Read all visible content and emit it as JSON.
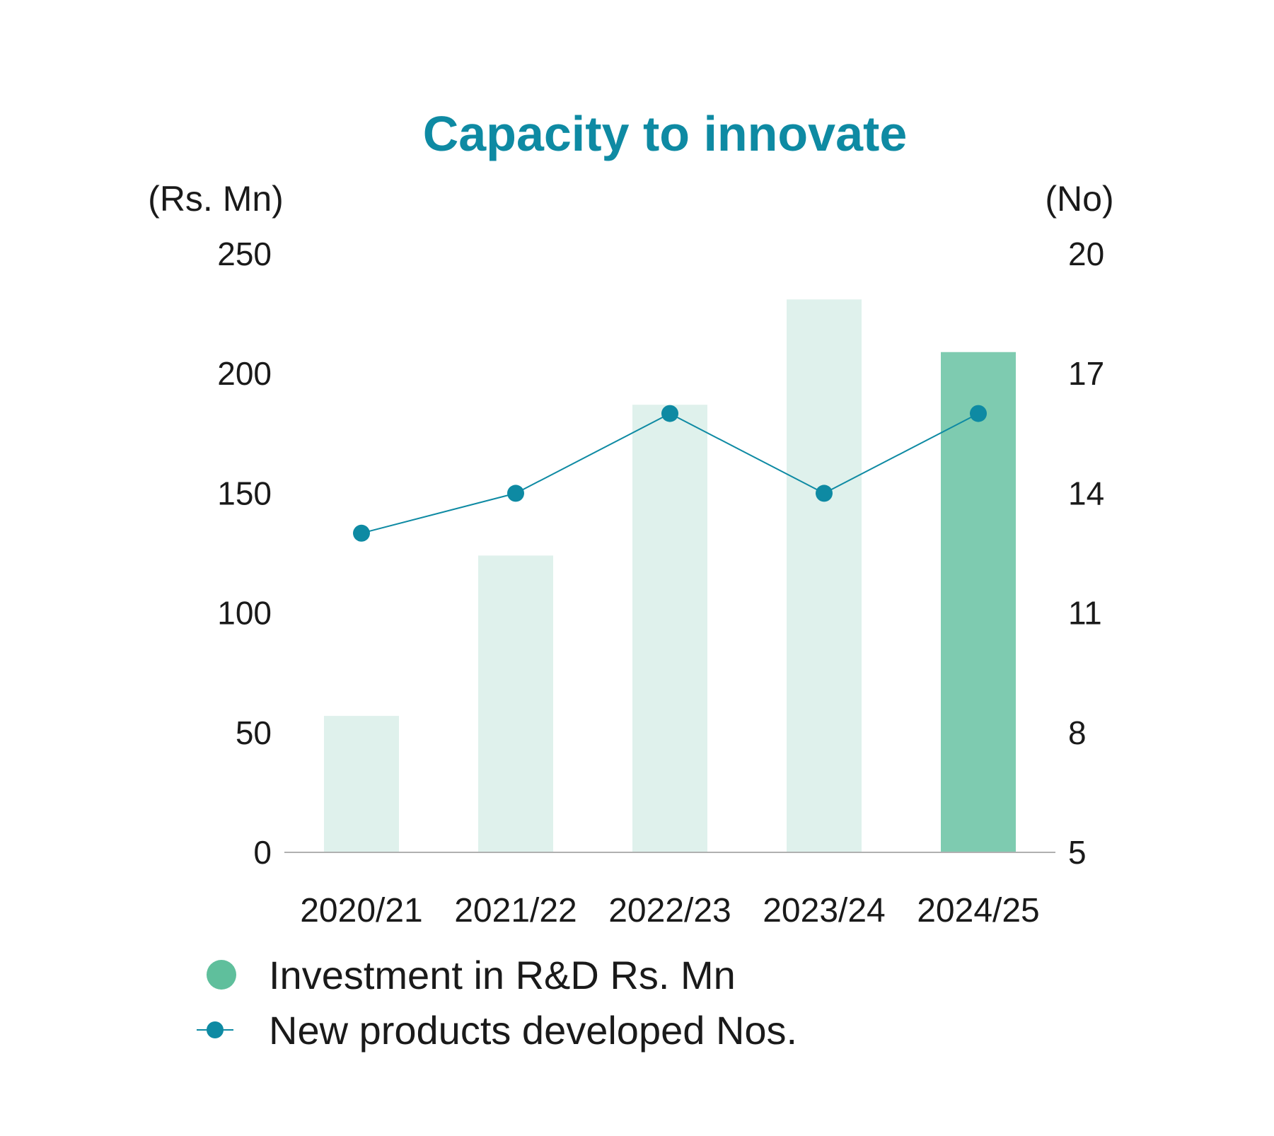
{
  "chart_data": {
    "type": "bar",
    "title": "Capacity to innovate",
    "categories": [
      "2020/21",
      "2021/22",
      "2022/23",
      "2023/24",
      "2024/25"
    ],
    "y_left": {
      "label": "(Rs. Mn)",
      "range": [
        0,
        250
      ],
      "ticks": [
        "250",
        "200",
        "150",
        "100",
        "50",
        "0"
      ],
      "tick_values": [
        250,
        200,
        150,
        100,
        50,
        0
      ]
    },
    "y_right": {
      "label": "(No)",
      "range": [
        5,
        20
      ],
      "ticks": [
        "20",
        "17",
        "14",
        "11",
        "8",
        "5"
      ],
      "tick_values": [
        20,
        17,
        14,
        11,
        8,
        5
      ]
    },
    "series": [
      {
        "name": "Investment in R&D Rs. Mn",
        "type": "bar",
        "axis": "left",
        "values": [
          57,
          124,
          187,
          231,
          209
        ],
        "highlight_index": 4
      },
      {
        "name": "New products developed Nos.",
        "type": "line",
        "axis": "right",
        "values": [
          13,
          14,
          16,
          14,
          16
        ]
      }
    ],
    "grid": false,
    "legend_position": "bottom-left",
    "colors": {
      "title": "#0e8aa3",
      "bar": "#dff1ec",
      "bar_highlight": "#7ecbb0",
      "legend_bar": "#5fbf9c",
      "line": "#0e8aa3",
      "axis": "#b0b0b0"
    }
  }
}
